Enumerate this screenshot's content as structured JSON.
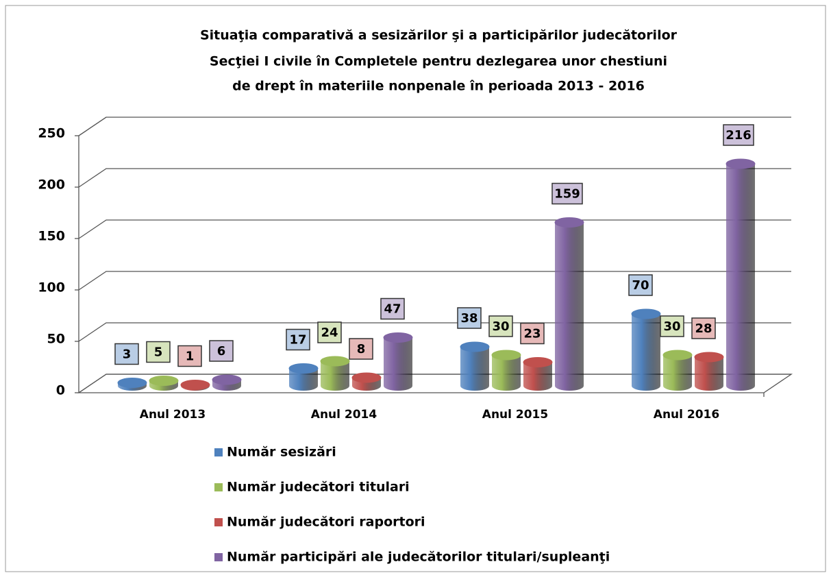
{
  "chart_data": {
    "type": "bar",
    "title": [
      "Situaţia comparativă a sesizărilor şi a participărilor judecătorilor",
      "Secţiei I civile în Completele pentru dezlegarea unor chestiuni",
      "de drept în materiile nonpenale în perioada 2013 - 2016"
    ],
    "categories": [
      "Anul 2013",
      "Anul 2014",
      "Anul 2015",
      "Anul 2016"
    ],
    "series": [
      {
        "name": "Număr sesizări",
        "color": "#4f81bd",
        "label_color": "#b9cde5",
        "values": [
          3,
          17,
          38,
          70
        ]
      },
      {
        "name": "Număr judecători titulari",
        "color": "#9bbb59",
        "label_color": "#d7e4bd",
        "values": [
          5,
          24,
          30,
          30
        ]
      },
      {
        "name": "Număr judecători raportori",
        "color": "#c0504d",
        "label_color": "#e6b9b8",
        "values": [
          1,
          8,
          23,
          28
        ]
      },
      {
        "name": "Număr participări ale judecătorilor titulari/supleanţi",
        "color": "#8064a2",
        "label_color": "#ccc1da",
        "values": [
          6,
          47,
          159,
          216
        ]
      }
    ],
    "ylim": [
      0,
      250
    ],
    "yticks": [
      0,
      50,
      100,
      150,
      200,
      250
    ],
    "grid": true,
    "legend": "bottom"
  }
}
